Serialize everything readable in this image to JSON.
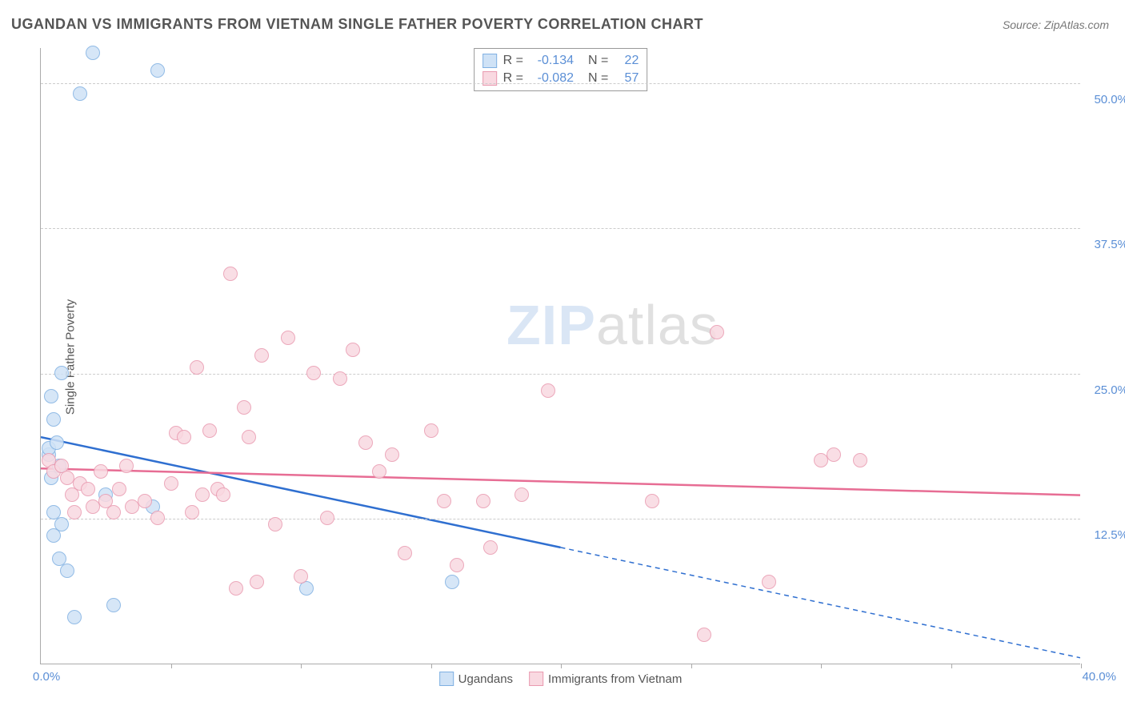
{
  "title": "UGANDAN VS IMMIGRANTS FROM VIETNAM SINGLE FATHER POVERTY CORRELATION CHART",
  "source_label": "Source: ZipAtlas.com",
  "y_axis_label": "Single Father Poverty",
  "watermark_zip": "ZIP",
  "watermark_atlas": "atlas",
  "chart": {
    "type": "scatter",
    "background_color": "#ffffff",
    "grid_color": "#cccccc",
    "axis_color": "#aaaaaa",
    "label_color": "#5b8fd6",
    "text_color": "#555555",
    "xlim": [
      0,
      40
    ],
    "ylim": [
      0,
      53
    ],
    "x_tick_positions": [
      0,
      5,
      10,
      15,
      20,
      25,
      30,
      35,
      40
    ],
    "x_tick_labels": {
      "start": "0.0%",
      "end": "40.0%"
    },
    "y_grid_positions": [
      12.5,
      25.0,
      37.5,
      50.0
    ],
    "y_grid_labels": [
      "12.5%",
      "25.0%",
      "37.5%",
      "50.0%"
    ],
    "point_radius": 9,
    "series": [
      {
        "name": "Ugandans",
        "fill": "#cfe2f6",
        "stroke": "#7fb0e2",
        "trend_color": "#2f6fd0",
        "trend_width": 2.5,
        "trend_start_y": 19.5,
        "trend_end_y": 0.5,
        "trend_solid_until_x": 20.0,
        "R": "-0.134",
        "N": "22",
        "points": [
          [
            0.3,
            18.0
          ],
          [
            0.3,
            18.5
          ],
          [
            0.5,
            21.0
          ],
          [
            0.7,
            17.0
          ],
          [
            0.4,
            16.0
          ],
          [
            0.5,
            13.0
          ],
          [
            0.8,
            12.0
          ],
          [
            0.5,
            11.0
          ],
          [
            0.7,
            9.0
          ],
          [
            0.4,
            23.0
          ],
          [
            0.8,
            25.0
          ],
          [
            1.0,
            8.0
          ],
          [
            1.3,
            4.0
          ],
          [
            1.5,
            49.0
          ],
          [
            2.0,
            52.5
          ],
          [
            2.5,
            14.5
          ],
          [
            2.8,
            5.0
          ],
          [
            4.5,
            51.0
          ],
          [
            4.3,
            13.5
          ],
          [
            10.2,
            6.5
          ],
          [
            15.8,
            7.0
          ],
          [
            0.6,
            19.0
          ]
        ]
      },
      {
        "name": "Immigrants from Vietnam",
        "fill": "#f9d9e1",
        "stroke": "#e99ab0",
        "trend_color": "#e76d94",
        "trend_width": 2.5,
        "trend_start_y": 16.8,
        "trend_end_y": 14.5,
        "trend_solid_until_x": 40.0,
        "R": "-0.082",
        "N": "57",
        "points": [
          [
            0.3,
            17.5
          ],
          [
            0.5,
            16.5
          ],
          [
            0.8,
            17.0
          ],
          [
            1.0,
            16.0
          ],
          [
            1.2,
            14.5
          ],
          [
            1.5,
            15.5
          ],
          [
            1.8,
            15.0
          ],
          [
            2.0,
            13.5
          ],
          [
            2.3,
            16.5
          ],
          [
            2.5,
            14.0
          ],
          [
            2.8,
            13.0
          ],
          [
            3.0,
            15.0
          ],
          [
            3.3,
            17.0
          ],
          [
            3.5,
            13.5
          ],
          [
            4.0,
            14.0
          ],
          [
            4.5,
            12.5
          ],
          [
            5.0,
            15.5
          ],
          [
            5.2,
            19.8
          ],
          [
            5.5,
            19.5
          ],
          [
            5.8,
            13.0
          ],
          [
            6.0,
            25.5
          ],
          [
            6.2,
            14.5
          ],
          [
            6.5,
            20.0
          ],
          [
            6.8,
            15.0
          ],
          [
            7.0,
            14.5
          ],
          [
            7.3,
            33.5
          ],
          [
            7.5,
            6.5
          ],
          [
            7.8,
            22.0
          ],
          [
            8.0,
            19.5
          ],
          [
            8.3,
            7.0
          ],
          [
            8.5,
            26.5
          ],
          [
            9.0,
            12.0
          ],
          [
            9.5,
            28.0
          ],
          [
            10.0,
            7.5
          ],
          [
            10.5,
            25.0
          ],
          [
            11.0,
            12.5
          ],
          [
            11.5,
            24.5
          ],
          [
            12.0,
            27.0
          ],
          [
            12.5,
            19.0
          ],
          [
            13.0,
            16.5
          ],
          [
            13.5,
            18.0
          ],
          [
            14.0,
            9.5
          ],
          [
            15.0,
            20.0
          ],
          [
            15.5,
            14.0
          ],
          [
            16.0,
            8.5
          ],
          [
            17.0,
            14.0
          ],
          [
            17.3,
            10.0
          ],
          [
            18.5,
            14.5
          ],
          [
            19.5,
            23.5
          ],
          [
            23.5,
            14.0
          ],
          [
            25.5,
            2.5
          ],
          [
            26.0,
            28.5
          ],
          [
            28.0,
            7.0
          ],
          [
            30.0,
            17.5
          ],
          [
            30.5,
            18.0
          ],
          [
            31.5,
            17.5
          ],
          [
            1.3,
            13.0
          ]
        ]
      }
    ]
  },
  "legend_labels": {
    "r_label": "R =",
    "n_label": "N =",
    "series1": "Ugandans",
    "series2": "Immigrants from Vietnam"
  }
}
